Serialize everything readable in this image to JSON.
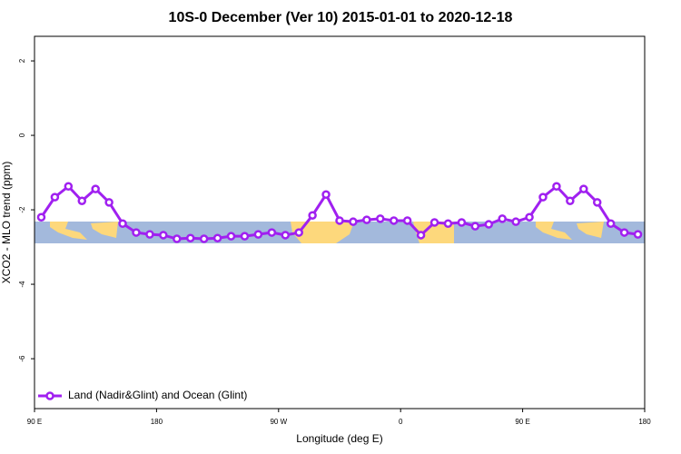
{
  "chart_data": {
    "type": "line",
    "title": "10S-0 December (Ver 10)   2015-01-01 to 2020-12-18",
    "x_label": "Longitude (deg E)",
    "y_label": "XCO2 - MLO trend (ppm)",
    "xlim": [
      90,
      540
    ],
    "xticks": [
      {
        "value": 90,
        "label": "90 E"
      },
      180,
      {
        "value": 270,
        "label": "90 W"
      },
      {
        "value": 360,
        "label": "0"
      },
      {
        "value": 450,
        "label": "90 E"
      },
      {
        "value": 540,
        "label": "180"
      }
    ],
    "ylim": [
      -7.34,
      2.66
    ],
    "yticks": [
      2,
      0,
      -2,
      -4,
      -6
    ],
    "x": [
      95,
      105,
      115,
      125,
      135,
      145,
      155,
      165,
      175,
      185,
      195,
      205,
      215,
      225,
      235,
      245,
      255,
      265,
      275,
      285,
      295,
      305,
      315,
      325,
      335,
      345,
      355,
      365,
      375,
      385,
      395,
      405,
      415,
      425,
      435,
      445,
      455,
      465,
      475,
      485,
      495,
      505,
      515,
      525,
      535
    ],
    "series": [
      {
        "name": "Land (Nadir&Glint) and Ocean (Glint)",
        "color": "#a020f0",
        "values": [
          -2.2,
          -1.66,
          -1.37,
          -1.76,
          -1.44,
          -1.8,
          -2.37,
          -2.61,
          -2.66,
          -2.68,
          -2.78,
          -2.76,
          -2.78,
          -2.76,
          -2.71,
          -2.71,
          -2.66,
          -2.61,
          -2.68,
          -2.61,
          -2.15,
          -1.59,
          -2.29,
          -2.32,
          -2.27,
          -2.24,
          -2.29,
          -2.29,
          -2.68,
          -2.34,
          -2.37,
          -2.34,
          -2.44,
          -2.39,
          -2.24,
          -2.32,
          -2.2,
          -1.66,
          -1.37,
          -1.76,
          -1.44,
          -1.8,
          -2.37,
          -2.61,
          -2.66
        ]
      }
    ],
    "legend": "lower left"
  }
}
